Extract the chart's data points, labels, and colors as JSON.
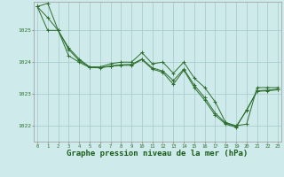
{
  "background_color": "#ceeaea",
  "grid_color": "#aacece",
  "line_color": "#2d6e2d",
  "marker_color": "#2d6e2d",
  "xlabel": "Graphe pression niveau de la mer (hPa)",
  "xlabel_fontsize": 6.5,
  "xlabel_color": "#1a5c1a",
  "yticks": [
    1022,
    1023,
    1024,
    1025
  ],
  "xtick_labels": [
    "0",
    "1",
    "2",
    "3",
    "4",
    "5",
    "6",
    "7",
    "8",
    "9",
    "10",
    "11",
    "12",
    "13",
    "14",
    "15",
    "16",
    "17",
    "18",
    "19",
    "20",
    "21",
    "22",
    "23"
  ],
  "xlim": [
    -0.3,
    23.3
  ],
  "ylim": [
    1021.5,
    1025.9
  ],
  "series": [
    [
      1025.75,
      1025.85,
      1025.0,
      1024.45,
      1024.1,
      1023.85,
      1023.85,
      1023.95,
      1024.0,
      1024.0,
      1024.3,
      1023.95,
      1024.0,
      1023.65,
      1024.0,
      1023.5,
      1023.2,
      1022.75,
      1022.1,
      1022.0,
      1022.05,
      1023.2,
      1023.2,
      1023.2
    ],
    [
      1025.75,
      1025.4,
      1025.0,
      1024.4,
      1024.05,
      1023.85,
      1023.83,
      1023.88,
      1023.92,
      1023.93,
      1024.1,
      1023.82,
      1023.72,
      1023.42,
      1023.78,
      1023.28,
      1022.88,
      1022.4,
      1022.08,
      1021.98,
      1022.48,
      1023.1,
      1023.12,
      1023.15
    ],
    [
      1025.75,
      1025.0,
      1025.0,
      1024.2,
      1024.0,
      1023.83,
      1023.82,
      1023.87,
      1023.9,
      1023.9,
      1024.08,
      1023.78,
      1023.68,
      1023.3,
      1023.75,
      1023.2,
      1022.8,
      1022.33,
      1022.05,
      1021.95,
      1022.5,
      1023.08,
      1023.1,
      1023.13
    ]
  ]
}
